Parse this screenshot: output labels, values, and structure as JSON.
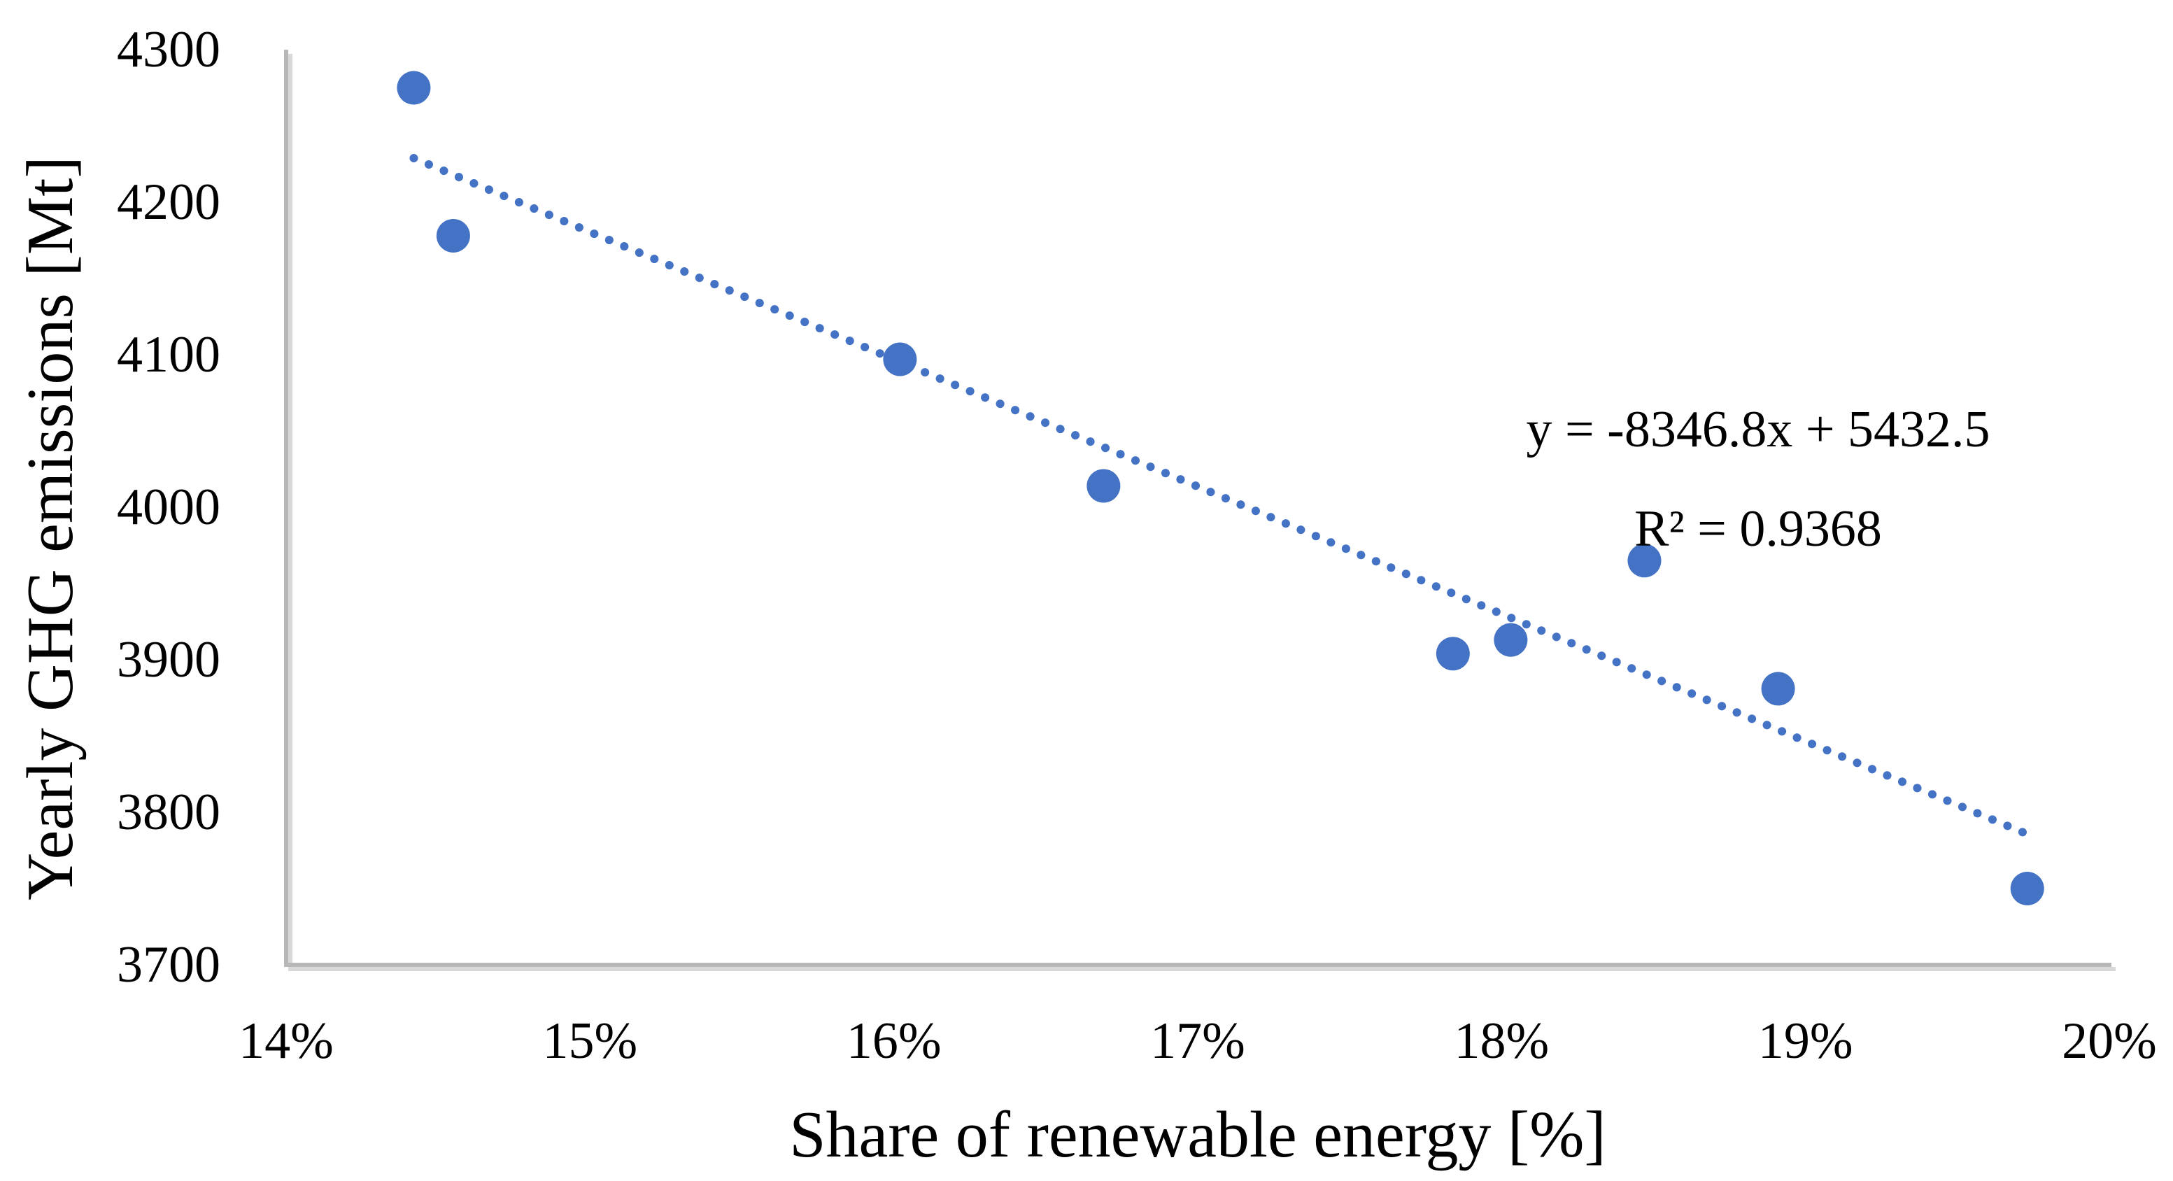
{
  "chart_data": {
    "type": "scatter",
    "title": "",
    "xlabel": "Share of renewable energy [%]",
    "ylabel": "Yearly GHG emissions [Mt]",
    "xlim": [
      14,
      20
    ],
    "ylim": [
      3700,
      4300
    ],
    "x_ticks": [
      "14%",
      "15%",
      "16%",
      "17%",
      "18%",
      "19%",
      "20%"
    ],
    "x_tick_values": [
      14,
      15,
      16,
      17,
      18,
      19,
      20
    ],
    "y_ticks": [
      "4300",
      "4200",
      "4100",
      "4000",
      "3900",
      "3800",
      "3700"
    ],
    "y_tick_values": [
      4300,
      4200,
      4100,
      4000,
      3900,
      3800,
      3700
    ],
    "grid": false,
    "legend": null,
    "points": [
      {
        "x": 14.42,
        "y": 4275
      },
      {
        "x": 14.55,
        "y": 4178
      },
      {
        "x": 16.02,
        "y": 4097
      },
      {
        "x": 16.69,
        "y": 4014
      },
      {
        "x": 17.84,
        "y": 3904
      },
      {
        "x": 18.03,
        "y": 3913
      },
      {
        "x": 18.47,
        "y": 3965
      },
      {
        "x": 18.91,
        "y": 3881
      },
      {
        "x": 19.73,
        "y": 3750
      }
    ],
    "trendline": {
      "label_line1": "y = -8346.8x + 5432.5",
      "label_line2": "R² = 0.9368",
      "slope": -8346.8,
      "intercept": 5432.5,
      "r_squared": 0.9368,
      "x_start": 14.42,
      "x_end": 19.73,
      "style": "dotted"
    },
    "marker_color": "#4472C4",
    "marker_radius_px": 24,
    "trendline_color": "#4472C4",
    "axis_color": "#B7B7B7",
    "text_color": "#000000"
  }
}
